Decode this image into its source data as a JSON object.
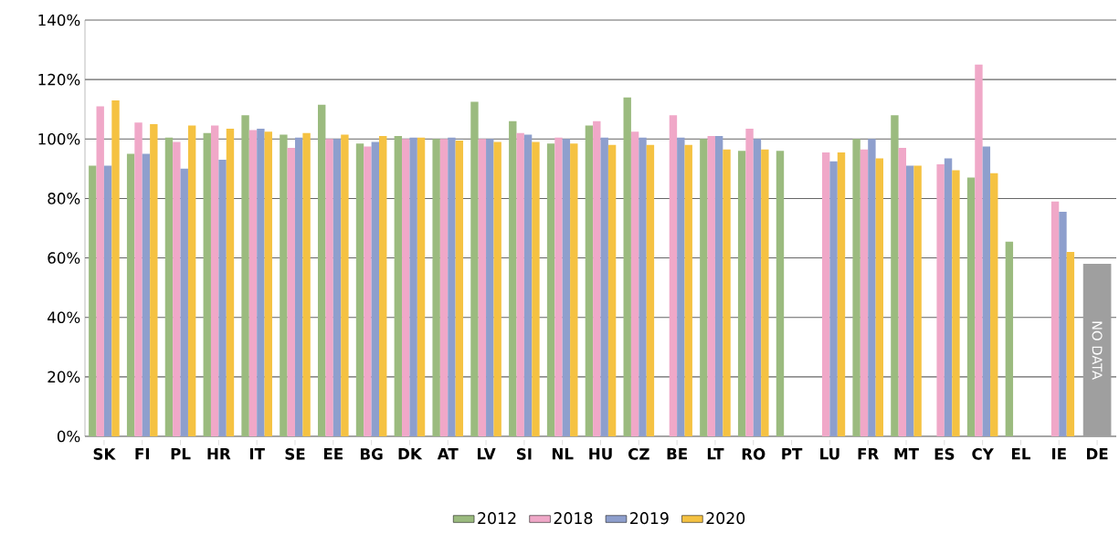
{
  "chart_data": {
    "type": "bar",
    "categories": [
      "SK",
      "FI",
      "PL",
      "HR",
      "IT",
      "SE",
      "EE",
      "BG",
      "DK",
      "AT",
      "LV",
      "SI",
      "NL",
      "HU",
      "CZ",
      "BE",
      "LT",
      "RO",
      "PT",
      "LU",
      "FR",
      "MT",
      "ES",
      "CY",
      "EL",
      "IE",
      "DE"
    ],
    "series": [
      {
        "name": "2012",
        "color": "#9bbb7f",
        "values": [
          91,
          95,
          100.5,
          102,
          108,
          101.5,
          111.5,
          98.5,
          101,
          100,
          112.5,
          106,
          98.5,
          104.5,
          114,
          null,
          100,
          96,
          96,
          null,
          100,
          108,
          null,
          87,
          65.5,
          null,
          null
        ]
      },
      {
        "name": "2018",
        "color": "#f0a8c8",
        "values": [
          111,
          105.5,
          99,
          104.5,
          103,
          97,
          100,
          97.5,
          100,
          100,
          100,
          102,
          100.5,
          106,
          102.5,
          108,
          101,
          103.5,
          null,
          95.5,
          96.5,
          97,
          91.5,
          125,
          null,
          79,
          null
        ]
      },
      {
        "name": "2019",
        "color": "#8e9fcd",
        "values": [
          91,
          95,
          90,
          93,
          103.5,
          100.5,
          100,
          99,
          100.5,
          100.5,
          100,
          101.5,
          100,
          100.5,
          100.5,
          100.5,
          101,
          100,
          null,
          92.5,
          100,
          91,
          93.5,
          97.5,
          null,
          75.5,
          null
        ]
      },
      {
        "name": "2020",
        "color": "#f5c242",
        "values": [
          113,
          105,
          104.5,
          103.5,
          102.5,
          102,
          101.5,
          101,
          100.5,
          99.5,
          99,
          99,
          98.5,
          98,
          98,
          98,
          96.5,
          96.5,
          null,
          95.5,
          93.5,
          91,
          89.5,
          88.5,
          null,
          62,
          null
        ]
      },
      {
        "color": "#9f9f9f",
        "values": [
          null,
          null,
          null,
          null,
          null,
          null,
          null,
          null,
          null,
          null,
          null,
          null,
          null,
          null,
          null,
          null,
          null,
          null,
          null,
          null,
          null,
          null,
          null,
          null,
          null,
          null,
          58
        ]
      }
    ],
    "ylim": [
      0,
      140
    ],
    "yticks": [
      {
        "value": 0,
        "label": "0%"
      },
      {
        "value": 20,
        "label": "20%"
      },
      {
        "value": 40,
        "label": "40%"
      },
      {
        "value": 60,
        "label": "60%"
      },
      {
        "value": 80,
        "label": "80%"
      },
      {
        "value": 100,
        "label": "100%"
      },
      {
        "value": 120,
        "label": "120%"
      },
      {
        "value": 140,
        "label": "140%"
      }
    ],
    "grid": "y",
    "legend": "bottom",
    "annotations": [
      "NO DATA"
    ]
  }
}
